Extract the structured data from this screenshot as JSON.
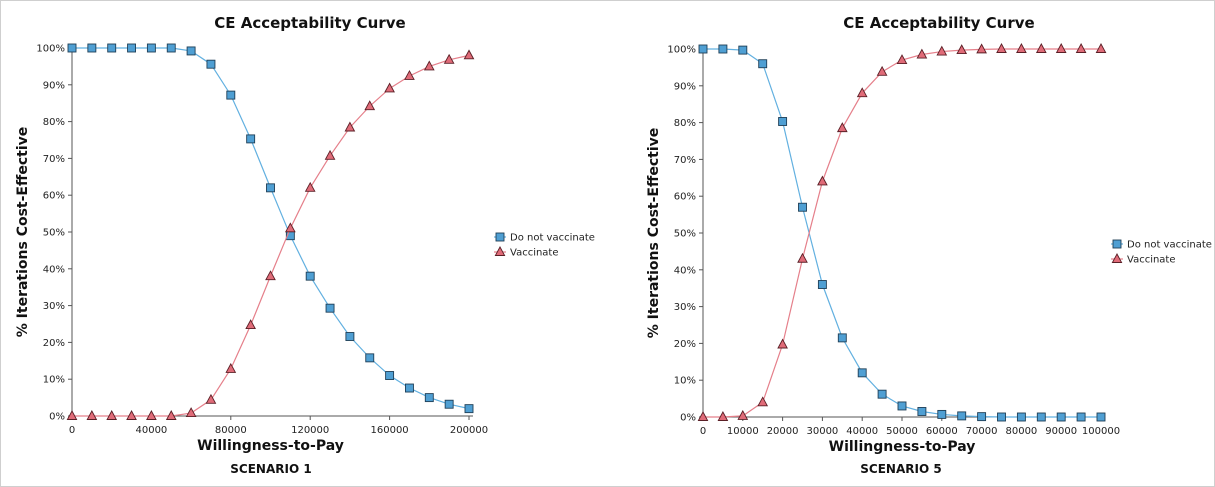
{
  "charts": [
    {
      "scenario": "SCENARIO 1",
      "chart_data": {
        "type": "line",
        "title": "CE Acceptability Curve",
        "xlabel": "Willingness-to-Pay",
        "ylabel": "% Iterations Cost-Effective",
        "xlim": [
          0,
          200000
        ],
        "ylim": [
          0,
          100
        ],
        "xticks": [
          0,
          40000,
          80000,
          120000,
          160000,
          200000
        ],
        "xtick_labels": [
          "0",
          "40000",
          "80000",
          "120000",
          "160000",
          "200000"
        ],
        "yticks": [
          0,
          10,
          20,
          30,
          40,
          50,
          60,
          70,
          80,
          90,
          100
        ],
        "ytick_labels": [
          "0%",
          "10%",
          "20%",
          "30%",
          "40%",
          "50%",
          "60%",
          "70%",
          "80%",
          "90%",
          "100%"
        ],
        "legend_position": "right",
        "grid": false,
        "x": [
          0,
          10000,
          20000,
          30000,
          40000,
          50000,
          60000,
          70000,
          80000,
          90000,
          100000,
          110000,
          120000,
          130000,
          140000,
          150000,
          160000,
          170000,
          180000,
          190000,
          200000
        ],
        "series": [
          {
            "name": "Do not vaccinate",
            "marker": "square",
            "color": "#4f9fd3",
            "line_color": "#62b0e0",
            "values": [
              100,
              100,
              100,
              100,
              100,
              100,
              99.2,
              95.6,
              87.2,
              75.3,
              62,
              49,
              38,
              29.3,
              21.6,
              15.8,
              11,
              7.6,
              5,
              3.2,
              2
            ]
          },
          {
            "name": "Vaccinate",
            "marker": "triangle",
            "color": "#e06b78",
            "line_color": "#e57f8a",
            "values": [
              0,
              0,
              0,
              0,
              0,
              0,
              0.8,
              4.4,
              12.8,
              24.7,
              38,
              51,
              62,
              70.7,
              78.4,
              84.2,
              89,
              92.4,
              95,
              96.8,
              98
            ]
          }
        ]
      }
    },
    {
      "scenario": "SCENARIO 5",
      "chart_data": {
        "type": "line",
        "title": "CE Acceptability Curve",
        "xlabel": "Willingness-to-Pay",
        "ylabel": "% Iterations Cost-Effective",
        "xlim": [
          0,
          100000
        ],
        "ylim": [
          0,
          100
        ],
        "xticks": [
          0,
          10000,
          20000,
          30000,
          40000,
          50000,
          60000,
          70000,
          80000,
          90000,
          100000
        ],
        "xtick_labels": [
          "0",
          "10000",
          "20000",
          "30000",
          "40000",
          "50000",
          "60000",
          "70000",
          "80000",
          "90000",
          "100000"
        ],
        "yticks": [
          0,
          10,
          20,
          30,
          40,
          50,
          60,
          70,
          80,
          90,
          100
        ],
        "ytick_labels": [
          "0%",
          "10%",
          "20%",
          "30%",
          "40%",
          "50%",
          "60%",
          "70%",
          "80%",
          "90%",
          "100%"
        ],
        "legend_position": "right",
        "grid": false,
        "x": [
          0,
          5000,
          10000,
          15000,
          20000,
          25000,
          30000,
          35000,
          40000,
          45000,
          50000,
          55000,
          60000,
          65000,
          70000,
          75000,
          80000,
          85000,
          90000,
          95000,
          100000
        ],
        "series": [
          {
            "name": "Do not vaccinate",
            "marker": "square",
            "color": "#4f9fd3",
            "line_color": "#62b0e0",
            "values": [
              100,
              100,
              99.7,
              96,
              80.3,
              57,
              36,
              21.5,
              12,
              6.2,
              3,
              1.5,
              0.7,
              0.3,
              0.1,
              0,
              0,
              0,
              0,
              0,
              0
            ]
          },
          {
            "name": "Vaccinate",
            "marker": "triangle",
            "color": "#e06b78",
            "line_color": "#e57f8a",
            "values": [
              0,
              0,
              0.3,
              4,
              19.7,
              43,
              64,
              78.5,
              88,
              93.8,
              97,
              98.5,
              99.3,
              99.7,
              99.9,
              100,
              100,
              100,
              100,
              100,
              100
            ]
          }
        ]
      }
    }
  ]
}
